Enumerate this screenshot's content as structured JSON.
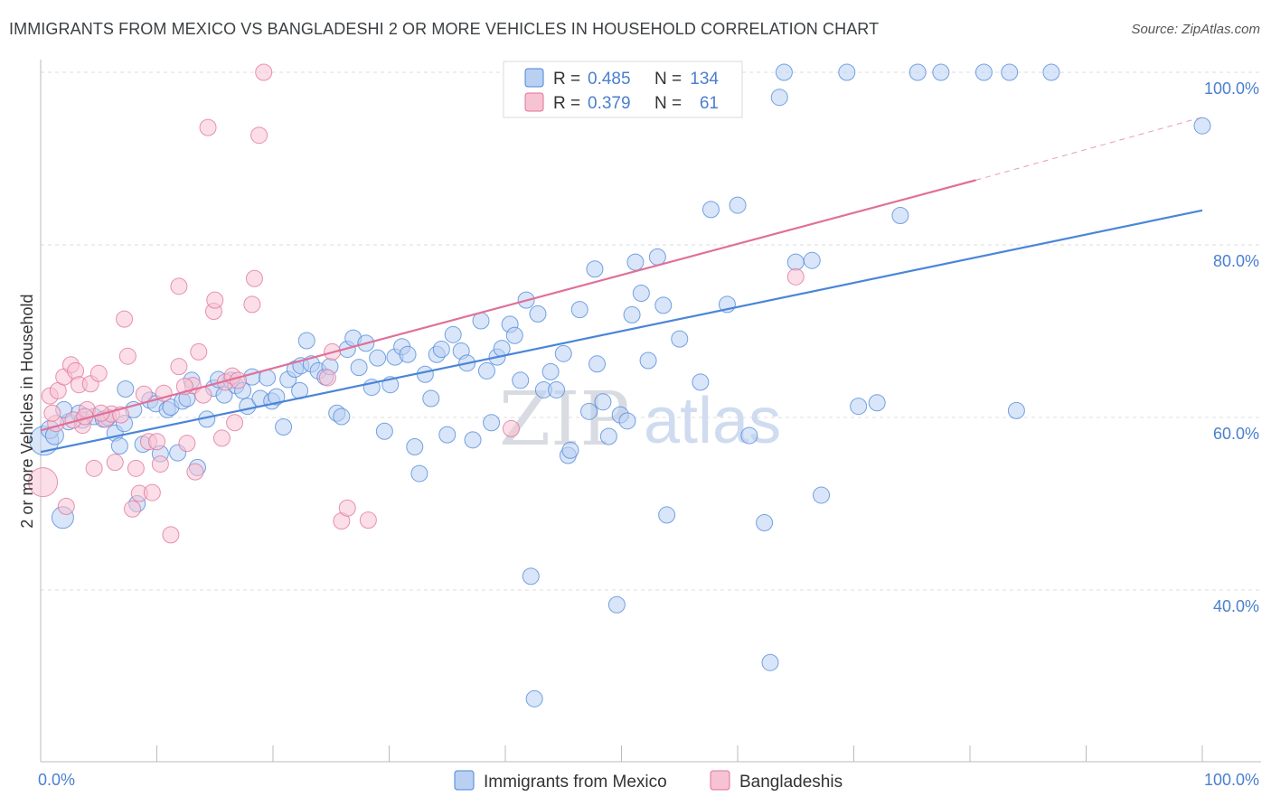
{
  "header": {
    "title": "IMMIGRANTS FROM MEXICO VS BANGLADESHI 2 OR MORE VEHICLES IN HOUSEHOLD CORRELATION CHART",
    "source": "Source: ZipAtlas.com"
  },
  "watermark": {
    "zip": "ZIP",
    "atlas": "atlas"
  },
  "colors": {
    "blue": "#4a86d8",
    "blue_fill": "#b9d0f2",
    "pink": "#e07098",
    "pink_fill": "#f7c3d3",
    "tick_text": "#4a7fd0",
    "grid": "#dddddd"
  },
  "legend_top": {
    "rows": [
      {
        "r_label": "R =",
        "r_value": "0.485",
        "n_label": "N =",
        "n_value": "134"
      },
      {
        "r_label": "R =",
        "r_value": "0.379",
        "n_label": "N =",
        "n_value": "61"
      }
    ]
  },
  "chart_data": {
    "type": "scatter",
    "xlabel": "",
    "ylabel": "2 or more Vehicles in Household",
    "xlim": [
      0,
      100
    ],
    "ylim": [
      20,
      102
    ],
    "x_tick_labels": [
      "0.0%",
      "100.0%"
    ],
    "y_ticks": [
      40,
      60,
      80,
      100
    ],
    "y_tick_labels": [
      "40.0%",
      "60.0%",
      "80.0%",
      "100.0%"
    ],
    "grid": true,
    "legend_position": "bottom-center",
    "series": [
      {
        "name": "Immigrants from Mexico",
        "color": "#4a86d8",
        "trend": {
          "x": [
            0,
            100
          ],
          "y": [
            56.0,
            84.0
          ]
        },
        "points": [
          [
            0.3,
            57.3,
            16
          ],
          [
            0.8,
            58.6,
            10
          ],
          [
            1.2,
            57.9,
            10
          ],
          [
            1.9,
            48.4,
            12
          ],
          [
            2.4,
            59.5,
            9
          ],
          [
            3.3,
            60.5,
            9
          ],
          [
            3.6,
            59.7,
            9
          ],
          [
            4.6,
            60.1,
            9
          ],
          [
            5.4,
            59.8,
            9
          ],
          [
            6.4,
            58.2,
            9
          ],
          [
            6.8,
            56.7,
            9
          ],
          [
            7.3,
            63.3,
            9
          ],
          [
            8.0,
            60.9,
            9
          ],
          [
            8.3,
            50.0,
            9
          ],
          [
            8.8,
            56.9,
            9
          ],
          [
            9.4,
            62.0,
            9
          ],
          [
            9.9,
            61.6,
            9
          ],
          [
            10.3,
            55.8,
            9
          ],
          [
            10.9,
            60.9,
            9
          ],
          [
            11.2,
            61.2,
            9
          ],
          [
            11.8,
            55.9,
            9
          ],
          [
            12.2,
            61.9,
            9
          ],
          [
            13.0,
            64.3,
            9
          ],
          [
            13.5,
            54.2,
            9
          ],
          [
            14.3,
            59.8,
            9
          ],
          [
            14.9,
            63.4,
            9
          ],
          [
            15.3,
            64.4,
            9
          ],
          [
            15.8,
            62.6,
            9
          ],
          [
            16.4,
            64.3,
            9
          ],
          [
            16.8,
            63.7,
            9
          ],
          [
            17.4,
            63.1,
            9
          ],
          [
            17.8,
            61.3,
            9
          ],
          [
            18.2,
            64.7,
            9
          ],
          [
            18.9,
            62.2,
            9
          ],
          [
            19.5,
            64.6,
            9
          ],
          [
            19.9,
            61.9,
            9
          ],
          [
            20.3,
            62.4,
            9
          ],
          [
            20.9,
            58.9,
            9
          ],
          [
            21.3,
            64.4,
            9
          ],
          [
            21.9,
            65.6,
            9
          ],
          [
            22.4,
            66.0,
            9
          ],
          [
            22.9,
            68.9,
            9
          ],
          [
            23.3,
            66.2,
            9
          ],
          [
            23.9,
            65.4,
            9
          ],
          [
            24.5,
            64.7,
            9
          ],
          [
            24.9,
            65.9,
            9
          ],
          [
            25.5,
            60.5,
            9
          ],
          [
            25.9,
            60.1,
            9
          ],
          [
            26.4,
            67.9,
            9
          ],
          [
            26.9,
            69.2,
            9
          ],
          [
            27.4,
            65.8,
            9
          ],
          [
            28.0,
            68.6,
            9
          ],
          [
            28.5,
            63.5,
            9
          ],
          [
            29.0,
            66.9,
            9
          ],
          [
            29.6,
            58.4,
            9
          ],
          [
            30.1,
            63.8,
            9
          ],
          [
            30.5,
            67.0,
            9
          ],
          [
            31.1,
            68.2,
            9
          ],
          [
            31.6,
            67.3,
            9
          ],
          [
            32.2,
            56.6,
            9
          ],
          [
            32.6,
            53.5,
            9
          ],
          [
            33.1,
            65.0,
            9
          ],
          [
            33.6,
            62.2,
            9
          ],
          [
            34.1,
            67.3,
            9
          ],
          [
            34.5,
            67.9,
            9
          ],
          [
            35.0,
            58.0,
            9
          ],
          [
            35.5,
            69.6,
            9
          ],
          [
            36.2,
            67.7,
            9
          ],
          [
            36.7,
            66.3,
            9
          ],
          [
            37.2,
            57.4,
            9
          ],
          [
            37.9,
            71.2,
            9
          ],
          [
            38.4,
            65.4,
            9
          ],
          [
            38.8,
            59.4,
            9
          ],
          [
            39.3,
            67.0,
            9
          ],
          [
            39.7,
            68.0,
            9
          ],
          [
            40.4,
            70.8,
            9
          ],
          [
            40.8,
            69.5,
            9
          ],
          [
            41.3,
            64.3,
            9
          ],
          [
            41.8,
            73.6,
            9
          ],
          [
            42.2,
            41.6,
            9
          ],
          [
            42.8,
            72.0,
            9
          ],
          [
            43.3,
            63.2,
            9
          ],
          [
            43.9,
            65.3,
            9
          ],
          [
            44.4,
            63.2,
            9
          ],
          [
            45.0,
            67.4,
            9
          ],
          [
            45.4,
            55.6,
            9
          ],
          [
            45.6,
            56.2,
            9
          ],
          [
            46.4,
            72.5,
            9
          ],
          [
            47.2,
            60.7,
            9
          ],
          [
            47.7,
            77.2,
            9
          ],
          [
            47.9,
            66.2,
            9
          ],
          [
            48.4,
            61.8,
            9
          ],
          [
            48.9,
            57.8,
            9
          ],
          [
            49.6,
            38.3,
            9
          ],
          [
            49.9,
            60.3,
            9
          ],
          [
            50.5,
            59.6,
            9
          ],
          [
            50.9,
            71.9,
            9
          ],
          [
            51.2,
            78.0,
            9
          ],
          [
            51.7,
            74.4,
            9
          ],
          [
            52.3,
            66.6,
            9
          ],
          [
            53.1,
            78.6,
            9
          ],
          [
            53.6,
            73.0,
            9
          ],
          [
            53.9,
            48.7,
            9
          ],
          [
            55.0,
            69.1,
            9
          ],
          [
            56.8,
            64.1,
            9
          ],
          [
            58.0,
            100.0,
            9
          ],
          [
            59.1,
            73.1,
            9
          ],
          [
            57.7,
            84.1,
            9
          ],
          [
            60.0,
            84.6,
            9
          ],
          [
            61.0,
            57.9,
            9
          ],
          [
            62.3,
            47.8,
            9
          ],
          [
            62.8,
            31.6,
            9
          ],
          [
            63.6,
            97.1,
            9
          ],
          [
            64.0,
            100.0,
            9
          ],
          [
            65.0,
            78.0,
            9
          ],
          [
            66.4,
            78.2,
            9
          ],
          [
            67.2,
            51.0,
            9
          ],
          [
            69.4,
            100.0,
            9
          ],
          [
            70.4,
            61.3,
            9
          ],
          [
            72.0,
            61.7,
            9
          ],
          [
            74.0,
            83.4,
            9
          ],
          [
            75.5,
            100.0,
            9
          ],
          [
            77.5,
            100.0,
            9
          ],
          [
            81.2,
            100.0,
            9
          ],
          [
            83.4,
            100.0,
            9
          ],
          [
            84.0,
            60.8,
            9
          ],
          [
            87.0,
            100.0,
            9
          ],
          [
            100.0,
            93.8,
            9
          ],
          [
            2.0,
            60.9,
            9
          ],
          [
            5.8,
            60.0,
            9
          ],
          [
            7.2,
            59.3,
            9
          ],
          [
            12.6,
            62.2,
            9
          ],
          [
            22.3,
            63.1,
            9
          ],
          [
            42.5,
            27.4,
            9
          ]
        ]
      },
      {
        "name": "Bangladeshis",
        "color": "#e07098",
        "trend": {
          "x": [
            0,
            80.5
          ],
          "y": [
            58.5,
            87.5
          ]
        },
        "trend_dashed": {
          "x": [
            80.5,
            100
          ],
          "y": [
            87.5,
            94.8
          ]
        },
        "points": [
          [
            0.2,
            52.5,
            16
          ],
          [
            0.8,
            62.5,
            9
          ],
          [
            1.3,
            59.3,
            9
          ],
          [
            1.5,
            63.1,
            9
          ],
          [
            2.0,
            64.7,
            9
          ],
          [
            2.2,
            49.7,
            9
          ],
          [
            2.6,
            66.1,
            9
          ],
          [
            3.0,
            65.4,
            9
          ],
          [
            3.3,
            63.8,
            9
          ],
          [
            3.6,
            59.1,
            9
          ],
          [
            4.0,
            60.9,
            9
          ],
          [
            4.3,
            63.9,
            9
          ],
          [
            4.6,
            54.1,
            9
          ],
          [
            5.0,
            65.1,
            9
          ],
          [
            5.6,
            59.8,
            9
          ],
          [
            6.1,
            60.4,
            9
          ],
          [
            6.4,
            54.8,
            9
          ],
          [
            6.9,
            60.3,
            9
          ],
          [
            7.2,
            71.4,
            9
          ],
          [
            7.5,
            67.1,
            9
          ],
          [
            7.9,
            49.4,
            9
          ],
          [
            8.2,
            54.1,
            9
          ],
          [
            8.5,
            51.2,
            9
          ],
          [
            8.9,
            62.7,
            9
          ],
          [
            9.3,
            57.2,
            9
          ],
          [
            9.6,
            51.3,
            9
          ],
          [
            10.0,
            57.2,
            9
          ],
          [
            10.3,
            54.6,
            9
          ],
          [
            10.6,
            62.8,
            9
          ],
          [
            11.2,
            46.4,
            9
          ],
          [
            11.9,
            75.2,
            9
          ],
          [
            11.9,
            65.9,
            9
          ],
          [
            12.6,
            57.0,
            9
          ],
          [
            13.1,
            63.7,
            9
          ],
          [
            13.3,
            53.7,
            9
          ],
          [
            13.6,
            67.6,
            9
          ],
          [
            14.0,
            62.6,
            9
          ],
          [
            14.4,
            93.6,
            9
          ],
          [
            14.9,
            72.3,
            9
          ],
          [
            15.0,
            73.6,
            9
          ],
          [
            15.6,
            57.6,
            9
          ],
          [
            15.9,
            64.1,
            9
          ],
          [
            16.5,
            64.8,
            9
          ],
          [
            16.7,
            59.4,
            9
          ],
          [
            18.2,
            73.1,
            9
          ],
          [
            18.4,
            76.1,
            9
          ],
          [
            18.8,
            92.7,
            9
          ],
          [
            19.2,
            100.0,
            9
          ],
          [
            24.7,
            64.6,
            9
          ],
          [
            25.1,
            67.6,
            9
          ],
          [
            25.9,
            48.0,
            9
          ],
          [
            26.4,
            49.5,
            9
          ],
          [
            28.2,
            48.1,
            9
          ],
          [
            40.5,
            58.7,
            9
          ],
          [
            65.0,
            76.3,
            9
          ],
          [
            1.0,
            60.5,
            9
          ],
          [
            2.8,
            59.7,
            9
          ],
          [
            3.8,
            60.1,
            9
          ],
          [
            5.2,
            60.5,
            9
          ],
          [
            12.4,
            63.6,
            9
          ],
          [
            17.0,
            64.3,
            9
          ]
        ]
      }
    ]
  },
  "legend_bottom": {
    "items": [
      "Immigrants from Mexico",
      "Bangladeshis"
    ]
  }
}
